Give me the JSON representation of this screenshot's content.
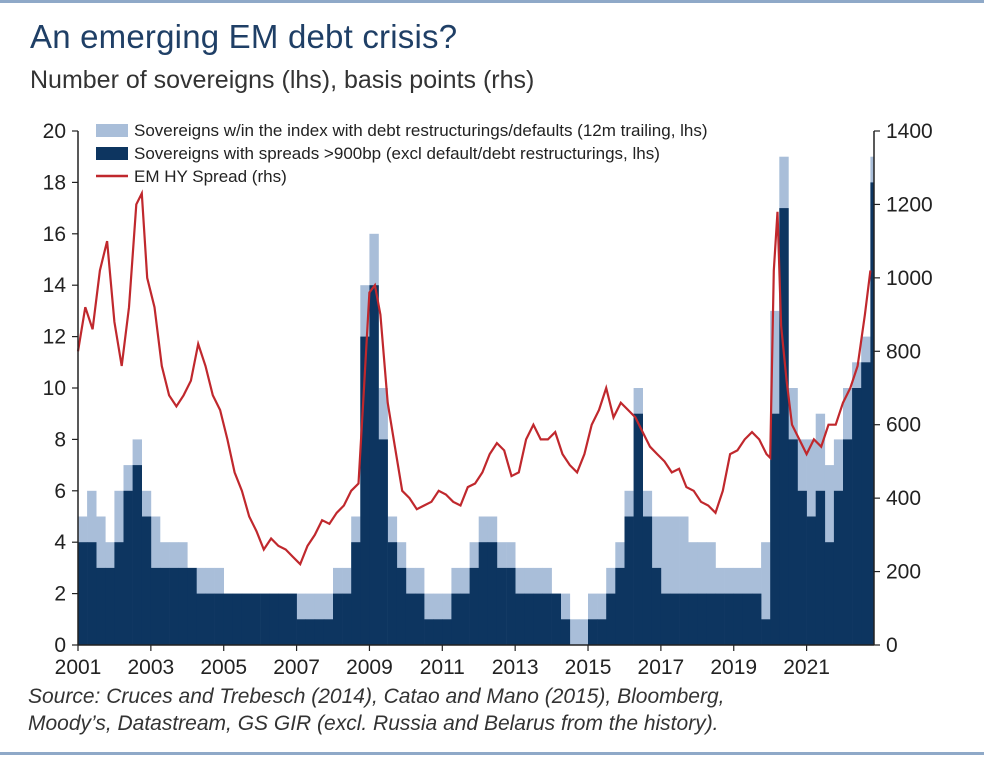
{
  "header": {
    "title": "An emerging EM debt crisis?",
    "subtitle": "Number of sovereigns (lhs), basis points (rhs)"
  },
  "source": {
    "line1": "Source: Cruces and Trebesch (2014), Catao and Mano (2015), Bloomberg,",
    "line2": "Moody’s, Datastream, GS GIR (excl. Russia and Belarus from the history)."
  },
  "colors": {
    "restructurings": "#a9bed9",
    "spreads": "#0d3560",
    "hy_spread": "#c0282d",
    "axis": "#222222"
  },
  "chart_data": {
    "type": "bar",
    "xlim": [
      2001.0,
      2022.85
    ],
    "ylim_left": [
      0,
      20
    ],
    "ylim_right": [
      0,
      1400
    ],
    "x_ticks": [
      "2001",
      "2003",
      "2005",
      "2007",
      "2009",
      "2011",
      "2013",
      "2015",
      "2017",
      "2019",
      "2021"
    ],
    "left_ticks": [
      "0",
      "2",
      "4",
      "6",
      "8",
      "10",
      "12",
      "14",
      "16",
      "18",
      "20"
    ],
    "right_ticks": [
      "0",
      "200",
      "400",
      "600",
      "800",
      "1000",
      "1200",
      "1400"
    ],
    "grid": false,
    "legend_position": "top",
    "legend": [
      "Sovereigns w/in the index with debt restructurings/defaults (12m trailing, lhs)",
      "Sovereigns with spreads >900bp (excl default/debt restructurings, lhs)",
      "EM HY Spread (rhs)"
    ],
    "series": [
      {
        "name": "Sovereigns w/in the index with debt restructurings/defaults (12m trailing, lhs)",
        "kind": "bar",
        "x": [
          2001.0,
          2001.25,
          2001.5,
          2001.75,
          2002.0,
          2002.25,
          2002.5,
          2002.75,
          2003.0,
          2003.25,
          2003.5,
          2003.75,
          2004.0,
          2004.25,
          2004.5,
          2004.75,
          2005.0,
          2005.25,
          2005.5,
          2005.75,
          2006.0,
          2006.25,
          2006.5,
          2006.75,
          2007.0,
          2007.25,
          2007.5,
          2007.75,
          2008.0,
          2008.25,
          2008.5,
          2008.75,
          2009.0,
          2009.25,
          2009.5,
          2009.75,
          2010.0,
          2010.25,
          2010.5,
          2010.75,
          2011.0,
          2011.25,
          2011.5,
          2011.75,
          2012.0,
          2012.25,
          2012.5,
          2012.75,
          2013.0,
          2013.25,
          2013.5,
          2013.75,
          2014.0,
          2014.25,
          2014.5,
          2014.75,
          2015.0,
          2015.25,
          2015.5,
          2015.75,
          2016.0,
          2016.25,
          2016.5,
          2016.75,
          2017.0,
          2017.25,
          2017.5,
          2017.75,
          2018.0,
          2018.25,
          2018.5,
          2018.75,
          2019.0,
          2019.25,
          2019.5,
          2019.75,
          2020.0,
          2020.25,
          2020.5,
          2020.75,
          2021.0,
          2021.25,
          2021.5,
          2021.75,
          2022.0,
          2022.25,
          2022.5,
          2022.75
        ],
        "values": [
          5,
          6,
          5,
          4,
          6,
          7,
          8,
          6,
          5,
          4,
          4,
          4,
          3,
          3,
          3,
          3,
          2,
          2,
          2,
          2,
          2,
          2,
          2,
          2,
          2,
          2,
          2,
          2,
          3,
          3,
          5,
          14,
          16,
          10,
          5,
          4,
          3,
          3,
          2,
          2,
          2,
          3,
          3,
          4,
          5,
          5,
          4,
          4,
          3,
          3,
          3,
          3,
          2,
          2,
          1,
          1,
          2,
          2,
          3,
          4,
          6,
          10,
          6,
          5,
          5,
          5,
          5,
          4,
          4,
          4,
          3,
          3,
          3,
          3,
          3,
          4,
          13,
          19,
          10,
          8,
          8,
          9,
          7,
          8,
          10,
          11,
          12,
          19
        ]
      },
      {
        "name": "Sovereigns with spreads >900bp (excl default/debt restructurings, lhs)",
        "kind": "bar",
        "x": [
          2001.0,
          2001.25,
          2001.5,
          2001.75,
          2002.0,
          2002.25,
          2002.5,
          2002.75,
          2003.0,
          2003.25,
          2003.5,
          2003.75,
          2004.0,
          2004.25,
          2004.5,
          2004.75,
          2005.0,
          2005.25,
          2005.5,
          2005.75,
          2006.0,
          2006.25,
          2006.5,
          2006.75,
          2007.0,
          2007.25,
          2007.5,
          2007.75,
          2008.0,
          2008.25,
          2008.5,
          2008.75,
          2009.0,
          2009.25,
          2009.5,
          2009.75,
          2010.0,
          2010.25,
          2010.5,
          2010.75,
          2011.0,
          2011.25,
          2011.5,
          2011.75,
          2012.0,
          2012.25,
          2012.5,
          2012.75,
          2013.0,
          2013.25,
          2013.5,
          2013.75,
          2014.0,
          2014.25,
          2014.5,
          2014.75,
          2015.0,
          2015.25,
          2015.5,
          2015.75,
          2016.0,
          2016.25,
          2016.5,
          2016.75,
          2017.0,
          2017.25,
          2017.5,
          2017.75,
          2018.0,
          2018.25,
          2018.5,
          2018.75,
          2019.0,
          2019.25,
          2019.5,
          2019.75,
          2020.0,
          2020.25,
          2020.5,
          2020.75,
          2021.0,
          2021.25,
          2021.5,
          2021.75,
          2022.0,
          2022.25,
          2022.5,
          2022.75
        ],
        "values": [
          4,
          4,
          3,
          3,
          4,
          6,
          7,
          5,
          3,
          3,
          3,
          3,
          3,
          2,
          2,
          2,
          2,
          2,
          2,
          2,
          2,
          2,
          2,
          2,
          1,
          1,
          1,
          1,
          2,
          2,
          4,
          12,
          14,
          8,
          4,
          3,
          2,
          2,
          1,
          1,
          1,
          2,
          2,
          3,
          4,
          4,
          3,
          3,
          2,
          2,
          2,
          2,
          2,
          1,
          0,
          0,
          1,
          1,
          2,
          3,
          5,
          9,
          5,
          3,
          2,
          2,
          2,
          2,
          2,
          2,
          2,
          2,
          2,
          2,
          2,
          1,
          9,
          17,
          8,
          6,
          5,
          6,
          4,
          6,
          8,
          10,
          11,
          18
        ]
      },
      {
        "name": "EM HY Spread (rhs)",
        "kind": "line",
        "axis": "right",
        "x": [
          2001.0,
          2001.2,
          2001.4,
          2001.6,
          2001.8,
          2002.0,
          2002.2,
          2002.4,
          2002.6,
          2002.75,
          2002.9,
          2003.1,
          2003.3,
          2003.5,
          2003.7,
          2003.9,
          2004.1,
          2004.3,
          2004.5,
          2004.7,
          2004.9,
          2005.1,
          2005.3,
          2005.5,
          2005.7,
          2005.9,
          2006.1,
          2006.3,
          2006.5,
          2006.7,
          2006.9,
          2007.1,
          2007.3,
          2007.5,
          2007.7,
          2007.9,
          2008.1,
          2008.3,
          2008.5,
          2008.7,
          2008.85,
          2009.0,
          2009.15,
          2009.3,
          2009.5,
          2009.7,
          2009.9,
          2010.1,
          2010.3,
          2010.5,
          2010.7,
          2010.9,
          2011.1,
          2011.3,
          2011.5,
          2011.7,
          2011.9,
          2012.1,
          2012.3,
          2012.5,
          2012.7,
          2012.9,
          2013.1,
          2013.3,
          2013.5,
          2013.7,
          2013.9,
          2014.1,
          2014.3,
          2014.5,
          2014.7,
          2014.9,
          2015.1,
          2015.3,
          2015.5,
          2015.7,
          2015.9,
          2016.1,
          2016.3,
          2016.5,
          2016.7,
          2016.9,
          2017.1,
          2017.3,
          2017.5,
          2017.7,
          2017.9,
          2018.1,
          2018.3,
          2018.5,
          2018.7,
          2018.9,
          2019.1,
          2019.3,
          2019.5,
          2019.7,
          2019.9,
          2020.0,
          2020.1,
          2020.2,
          2020.3,
          2020.45,
          2020.6,
          2020.8,
          2021.0,
          2021.2,
          2021.4,
          2021.6,
          2021.8,
          2022.0,
          2022.2,
          2022.4,
          2022.6,
          2022.75
        ],
        "values": [
          800,
          920,
          860,
          1020,
          1100,
          880,
          760,
          920,
          1200,
          1230,
          1000,
          920,
          760,
          680,
          650,
          680,
          720,
          820,
          760,
          680,
          640,
          560,
          470,
          420,
          350,
          310,
          260,
          290,
          270,
          260,
          240,
          220,
          270,
          300,
          340,
          330,
          360,
          380,
          420,
          440,
          700,
          960,
          980,
          900,
          660,
          540,
          420,
          400,
          370,
          380,
          390,
          420,
          410,
          390,
          380,
          430,
          440,
          470,
          520,
          550,
          530,
          460,
          470,
          560,
          600,
          560,
          560,
          580,
          520,
          490,
          470,
          520,
          600,
          640,
          700,
          620,
          660,
          640,
          620,
          580,
          540,
          520,
          500,
          470,
          480,
          430,
          420,
          390,
          380,
          360,
          420,
          520,
          530,
          560,
          580,
          560,
          520,
          510,
          1020,
          1180,
          870,
          720,
          600,
          560,
          520,
          560,
          540,
          600,
          600,
          660,
          700,
          760,
          900,
          1020
        ]
      }
    ]
  }
}
